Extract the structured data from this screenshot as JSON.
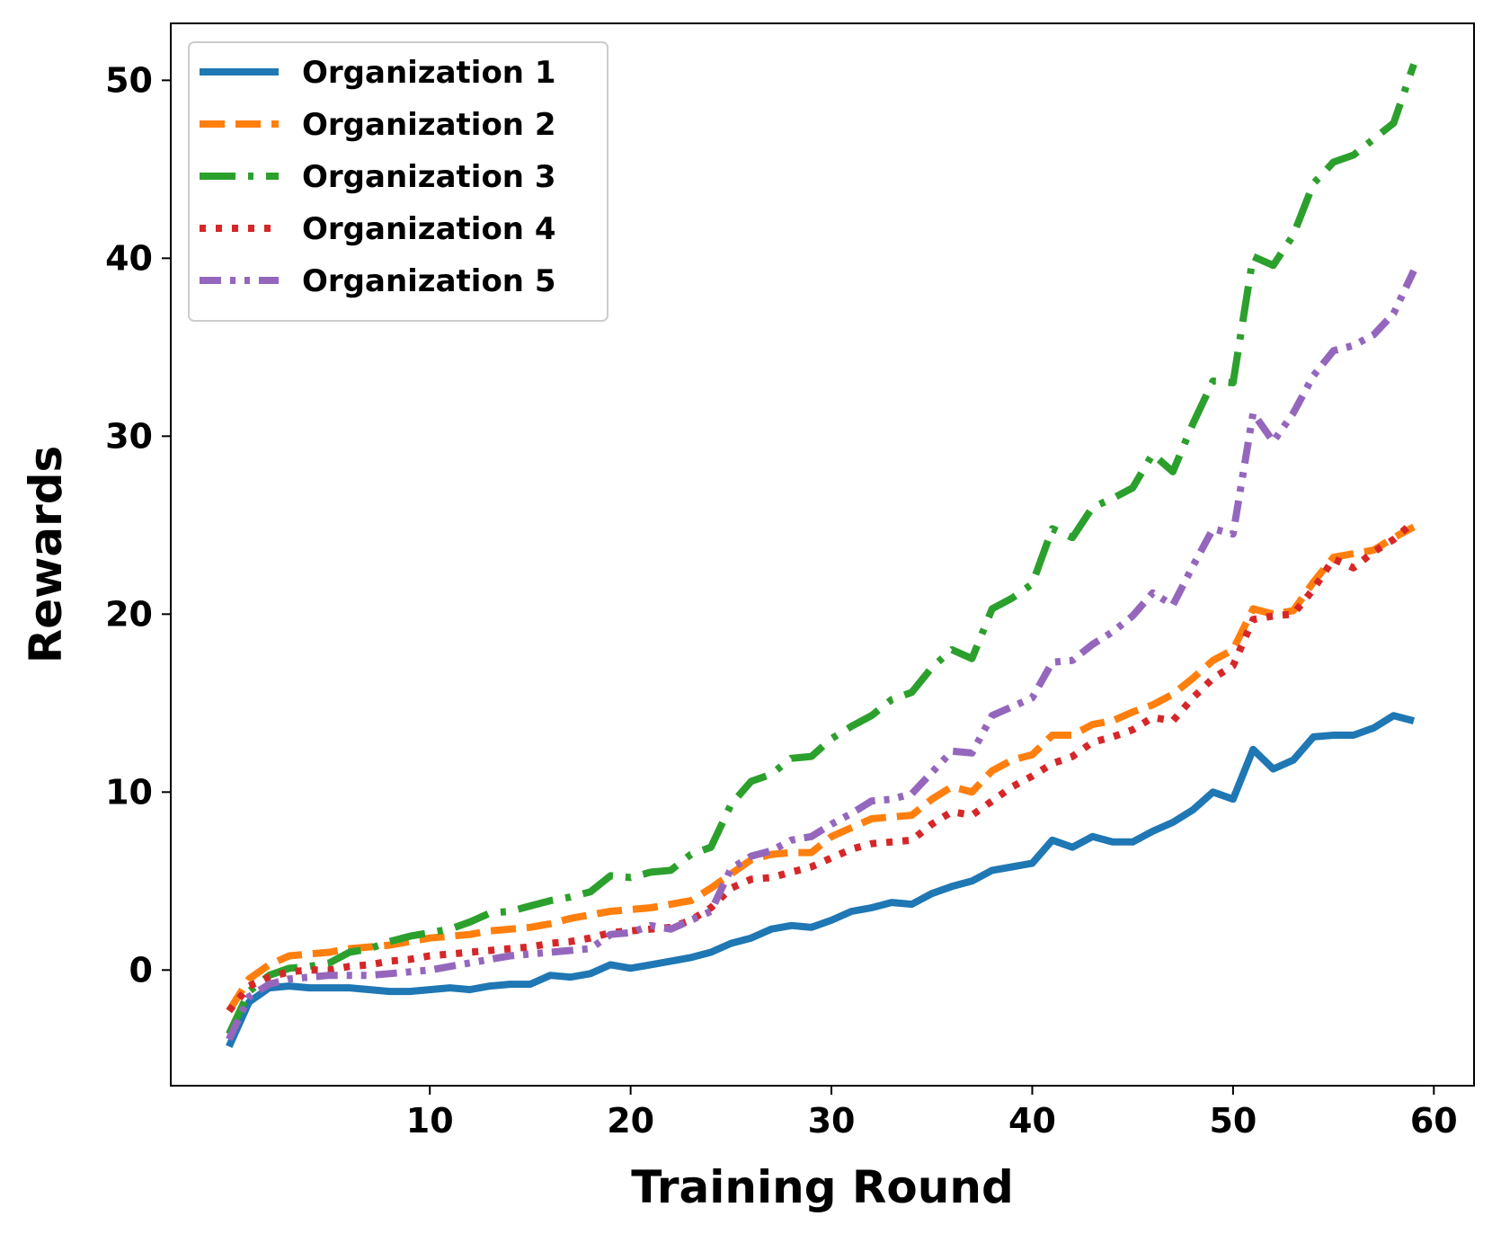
{
  "chart_data": {
    "type": "line",
    "title": "",
    "xlabel": "Training Round",
    "ylabel": "Rewards",
    "xlim": [
      -2.9,
      62
    ],
    "ylim": [
      -6.5,
      53.2
    ],
    "xticks": [
      10,
      20,
      30,
      40,
      50,
      60
    ],
    "yticks": [
      0,
      10,
      20,
      30,
      40,
      50
    ],
    "grid": false,
    "legend_position": "upper-left",
    "x": [
      0,
      1,
      2,
      3,
      4,
      5,
      6,
      7,
      8,
      9,
      10,
      11,
      12,
      13,
      14,
      15,
      16,
      17,
      18,
      19,
      20,
      21,
      22,
      23,
      24,
      25,
      26,
      27,
      28,
      29,
      30,
      31,
      32,
      33,
      34,
      35,
      36,
      37,
      38,
      39,
      40,
      41,
      42,
      43,
      44,
      45,
      46,
      47,
      48,
      49,
      50,
      51,
      52,
      53,
      54,
      55,
      56,
      57,
      58,
      59
    ],
    "series": [
      {
        "name": "Organization 1",
        "color": "#1f77b4",
        "dash": "solid",
        "values": [
          -4.3,
          -1.8,
          -1.0,
          -0.9,
          -1.0,
          -1.0,
          -1.0,
          -1.1,
          -1.2,
          -1.2,
          -1.1,
          -1.0,
          -1.1,
          -0.9,
          -0.8,
          -0.8,
          -0.3,
          -0.4,
          -0.2,
          0.3,
          0.1,
          0.3,
          0.5,
          0.7,
          1.0,
          1.5,
          1.8,
          2.3,
          2.5,
          2.4,
          2.8,
          3.3,
          3.5,
          3.8,
          3.7,
          4.3,
          4.7,
          5.0,
          5.6,
          5.8,
          6.0,
          7.3,
          6.9,
          7.5,
          7.2,
          7.2,
          7.8,
          8.3,
          9.0,
          10.0,
          9.6,
          12.4,
          11.3,
          11.8,
          13.1,
          13.2,
          13.2,
          13.6,
          14.3,
          14.0
        ]
      },
      {
        "name": "Organization 2",
        "color": "#ff7f0e",
        "dash": "dashed",
        "values": [
          -2.3,
          -0.5,
          0.3,
          0.8,
          0.9,
          1.0,
          1.2,
          1.3,
          1.4,
          1.6,
          1.8,
          1.9,
          2.0,
          2.2,
          2.3,
          2.4,
          2.6,
          2.9,
          3.1,
          3.3,
          3.4,
          3.5,
          3.7,
          3.9,
          4.6,
          5.4,
          6.2,
          6.5,
          6.6,
          6.6,
          7.5,
          8.0,
          8.5,
          8.6,
          8.7,
          9.6,
          10.3,
          10.0,
          11.2,
          11.8,
          12.1,
          13.2,
          13.2,
          13.8,
          14.0,
          14.5,
          14.9,
          15.5,
          16.4,
          17.4,
          18.0,
          20.3,
          20.0,
          20.2,
          21.8,
          23.2,
          23.4,
          23.6,
          24.3,
          24.9
        ]
      },
      {
        "name": "Organization 3",
        "color": "#2ca02c",
        "dash": "dashdot",
        "values": [
          -3.6,
          -1.2,
          -0.3,
          0.1,
          0.2,
          0.4,
          1.0,
          1.2,
          1.6,
          1.9,
          2.1,
          2.3,
          2.7,
          3.2,
          3.3,
          3.6,
          3.9,
          4.1,
          4.4,
          5.3,
          5.2,
          5.5,
          5.6,
          6.5,
          6.9,
          9.3,
          10.6,
          11.0,
          11.9,
          12.0,
          13.0,
          13.7,
          14.3,
          15.2,
          15.6,
          17.0,
          18.0,
          17.5,
          20.3,
          20.9,
          21.7,
          24.8,
          24.3,
          26.0,
          26.5,
          27.1,
          29.0,
          28.0,
          30.7,
          33.1,
          33.0,
          40.1,
          39.6,
          41.3,
          44.2,
          45.4,
          45.8,
          46.7,
          47.6,
          50.9
        ]
      },
      {
        "name": "Organization 4",
        "color": "#d62728",
        "dash": "dotted",
        "values": [
          -2.3,
          -0.9,
          -0.4,
          -0.1,
          0.0,
          0.0,
          0.2,
          0.3,
          0.5,
          0.6,
          0.8,
          0.9,
          1.0,
          1.1,
          1.2,
          1.3,
          1.5,
          1.6,
          1.8,
          2.1,
          2.2,
          2.3,
          2.4,
          2.8,
          3.5,
          4.6,
          5.1,
          5.2,
          5.5,
          5.8,
          6.3,
          6.8,
          7.1,
          7.2,
          7.3,
          8.2,
          8.9,
          8.7,
          9.5,
          10.3,
          10.9,
          11.6,
          12.0,
          12.8,
          13.1,
          13.5,
          14.2,
          14.0,
          15.3,
          16.4,
          17.1,
          19.7,
          19.9,
          20.0,
          21.4,
          23.1,
          22.6,
          23.5,
          24.2,
          25.2
        ]
      },
      {
        "name": "Organization 5",
        "color": "#9467bd",
        "dash": "dashdotdot",
        "values": [
          -3.9,
          -1.5,
          -0.8,
          -0.5,
          -0.4,
          -0.3,
          -0.3,
          -0.3,
          -0.2,
          -0.1,
          0.0,
          0.2,
          0.4,
          0.6,
          0.8,
          0.9,
          1.0,
          1.1,
          1.2,
          2.0,
          2.1,
          2.5,
          2.3,
          2.8,
          3.3,
          5.7,
          6.4,
          6.7,
          7.3,
          7.5,
          8.2,
          8.8,
          9.5,
          9.6,
          9.9,
          11.1,
          12.3,
          12.2,
          14.3,
          14.8,
          15.3,
          17.3,
          17.4,
          18.3,
          19.0,
          19.9,
          21.2,
          20.5,
          22.7,
          24.8,
          24.5,
          31.3,
          29.7,
          31.3,
          33.4,
          34.8,
          35.1,
          35.7,
          36.9,
          39.3
        ]
      }
    ]
  }
}
